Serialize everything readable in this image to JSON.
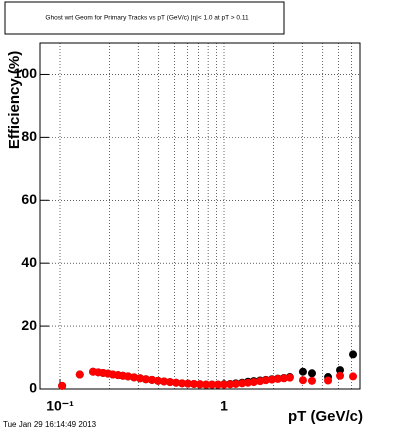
{
  "chart_data": {
    "type": "scatter",
    "title": "Ghost wrt Geom for Primary Tracks vs pT (GeV/c) |η|< 1.0 at pT > 0.11",
    "x_label": "pT (GeV/c)",
    "y_label": "Efficiency (%)",
    "timestamp": "Tue Jan 29 16:14:49 2013",
    "x_log": true,
    "grid": true,
    "xlim": [
      0.0755,
      6.75
    ],
    "ylim": [
      0,
      110
    ],
    "xticks": [
      {
        "value": 0.1,
        "label": "10⁻¹"
      },
      1
    ],
    "xgrid": [
      0.1,
      0.2,
      0.3,
      0.4,
      0.5,
      0.6,
      0.7,
      0.8,
      0.9,
      1,
      2,
      3,
      4,
      5,
      6
    ],
    "yticks": [
      0,
      20,
      40,
      60,
      80,
      100
    ],
    "x": [
      0.103,
      0.132,
      0.159,
      0.171,
      0.183,
      0.196,
      0.21,
      0.226,
      0.242,
      0.26,
      0.283,
      0.308,
      0.334,
      0.364,
      0.396,
      0.431,
      0.469,
      0.51,
      0.555,
      0.603,
      0.656,
      0.714,
      0.777,
      0.845,
      0.919,
      1.0,
      1.09,
      1.18,
      1.29,
      1.4,
      1.52,
      1.66,
      1.8,
      1.96,
      2.13,
      2.32,
      2.52,
      3.03,
      3.44,
      4.31,
      5.1,
      6.12
    ],
    "series": [
      {
        "color": "#000000",
        "values": [
          1.0,
          4.6,
          5.5,
          5.3,
          5.1,
          4.9,
          4.6,
          4.4,
          4.2,
          4.0,
          3.7,
          3.4,
          3.1,
          2.9,
          2.6,
          2.4,
          2.2,
          2.0,
          1.8,
          1.7,
          1.6,
          1.5,
          1.4,
          1.4,
          1.4,
          1.5,
          1.6,
          1.8,
          2.0,
          2.3,
          2.5,
          2.7,
          2.9,
          3.1,
          3.3,
          3.5,
          3.8,
          5.5,
          5.0,
          3.8,
          6.0,
          11.0
        ]
      },
      {
        "color": "#ff0000",
        "values": [
          1.0,
          4.6,
          5.5,
          5.3,
          5.1,
          4.9,
          4.6,
          4.4,
          4.2,
          4.0,
          3.7,
          3.4,
          3.1,
          2.9,
          2.6,
          2.4,
          2.2,
          2.0,
          1.8,
          1.7,
          1.6,
          1.5,
          1.4,
          1.4,
          1.4,
          1.4,
          1.5,
          1.6,
          1.8,
          2.0,
          2.2,
          2.5,
          2.8,
          3.0,
          3.2,
          3.4,
          3.6,
          2.8,
          2.6,
          2.7,
          4.2,
          4.0
        ]
      }
    ]
  }
}
